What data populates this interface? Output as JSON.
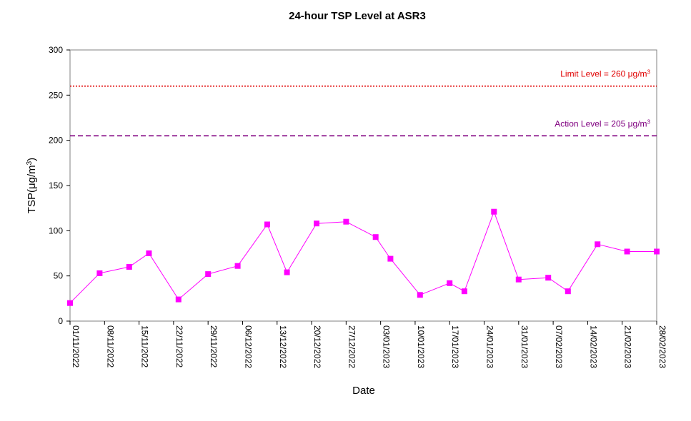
{
  "chart_data": {
    "type": "line",
    "title": "24-hour TSP Level at ASR3",
    "xlabel": "Date",
    "ylabel": "TSP(μg/m3)",
    "ylabel_parts": {
      "base": "TSP(μg/m",
      "sup": "3",
      "tail": ")"
    },
    "ylim": [
      0,
      300
    ],
    "yticks": [
      "0",
      "50",
      "100",
      "150",
      "200",
      "250",
      "300"
    ],
    "yticks_values": [
      0,
      50,
      100,
      150,
      200,
      250,
      300
    ],
    "xlim": [
      "2022-11-01",
      "2023-02-28"
    ],
    "xticks": [
      "01/11/2022",
      "08/11/2022",
      "15/11/2022",
      "22/11/2022",
      "29/11/2022",
      "06/12/2022",
      "13/12/2022",
      "20/12/2022",
      "27/12/2022",
      "03/01/2023",
      "10/01/2023",
      "17/01/2023",
      "24/01/2023",
      "31/01/2023",
      "07/02/2023",
      "14/02/2023",
      "21/02/2023",
      "28/02/2023"
    ],
    "xtick_dates": [
      "2022-11-01",
      "2022-11-08",
      "2022-11-15",
      "2022-11-22",
      "2022-11-29",
      "2022-12-06",
      "2022-12-13",
      "2022-12-20",
      "2022-12-27",
      "2023-01-03",
      "2023-01-10",
      "2023-01-17",
      "2023-01-24",
      "2023-01-31",
      "2023-02-07",
      "2023-02-14",
      "2023-02-21",
      "2023-02-28"
    ],
    "grid": false,
    "series": [
      {
        "color": "#ff00ff",
        "marker": "square",
        "x": [
          "2022-11-01",
          "2022-11-07",
          "2022-11-13",
          "2022-11-17",
          "2022-11-23",
          "2022-11-29",
          "2022-12-05",
          "2022-12-11",
          "2022-12-15",
          "2022-12-21",
          "2022-12-27",
          "2023-01-02",
          "2023-01-05",
          "2023-01-11",
          "2023-01-17",
          "2023-01-20",
          "2023-01-26",
          "2023-01-31",
          "2023-02-06",
          "2023-02-10",
          "2023-02-16",
          "2023-02-22",
          "2023-02-28"
        ],
        "values": [
          20,
          53,
          60,
          75,
          24,
          52,
          61,
          107,
          54,
          108,
          110,
          93,
          69,
          29,
          42,
          33,
          121,
          46,
          48,
          33,
          85,
          77,
          77
        ]
      }
    ],
    "reference_lines": [
      {
        "name": "Limit Level",
        "value": 260,
        "label_text": "Limit Level  = 260 μg/m",
        "label_sup": "3",
        "color": "#e00000",
        "style": "dotted"
      },
      {
        "name": "Action Level",
        "value": 205,
        "label_text": "Action Level  = 205 μg/m",
        "label_sup": "3",
        "color": "#800080",
        "style": "dashed"
      }
    ]
  }
}
